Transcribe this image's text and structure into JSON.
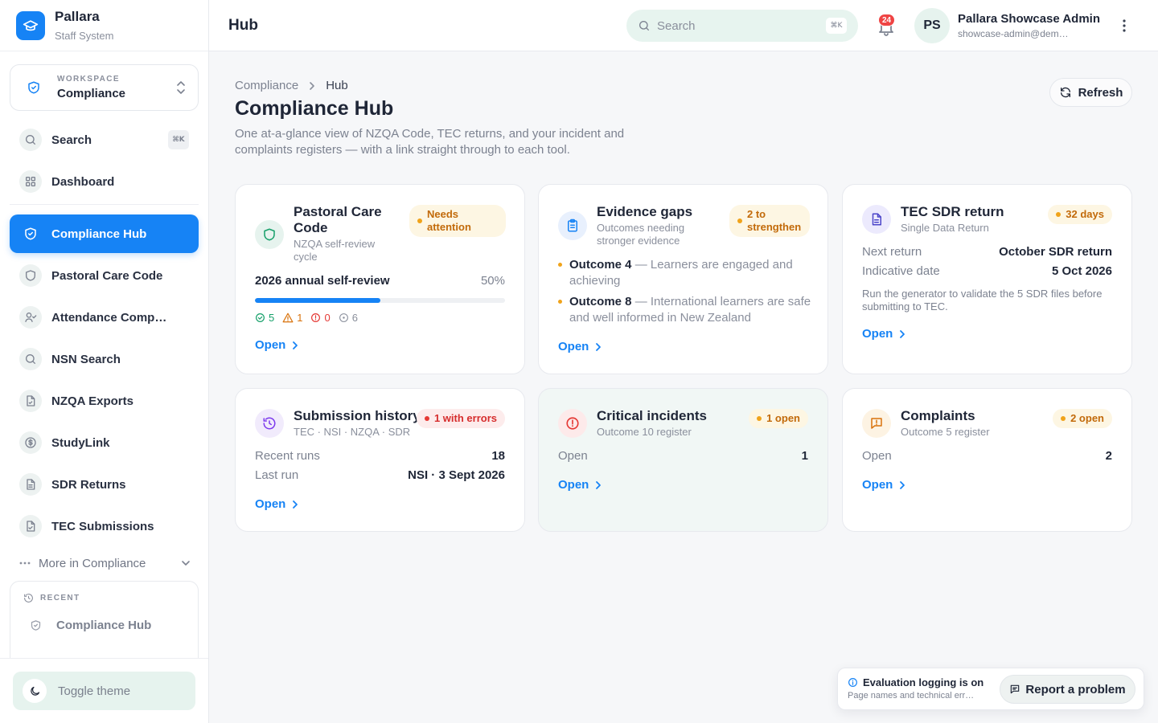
{
  "brand": {
    "name": "Pallara",
    "subtitle": "Staff System"
  },
  "workspace": {
    "caption": "WORKSPACE",
    "value": "Compliance"
  },
  "nav": {
    "items": [
      {
        "label": "Search",
        "icon": "search-icon",
        "shortcut": "⌘K"
      },
      {
        "label": "Dashboard",
        "icon": "grid-icon"
      },
      {
        "label": "Compliance Hub",
        "icon": "shield-icon",
        "active": true
      },
      {
        "label": "Pastoral Care Code",
        "icon": "shield-icon"
      },
      {
        "label": "Attendance Comp…",
        "icon": "user-check-icon"
      },
      {
        "label": "NSN Search",
        "icon": "search-icon"
      },
      {
        "label": "NZQA Exports",
        "icon": "file-icon"
      },
      {
        "label": "StudyLink",
        "icon": "dollar-icon"
      },
      {
        "label": "SDR Returns",
        "icon": "file-text-icon"
      },
      {
        "label": "TEC Submissions",
        "icon": "file-check-icon"
      }
    ],
    "more": "More in Compliance"
  },
  "recent": {
    "caption": "RECENT",
    "items": [
      {
        "label": "Compliance Hub",
        "icon": "shield-icon"
      }
    ]
  },
  "toggle_theme": "Toggle theme",
  "topbar": {
    "title": "Hub",
    "search_placeholder": "Search",
    "search_shortcut": "⌘K",
    "notification_count": "24",
    "user_initials": "PS",
    "user_name": "Pallara Showcase Admin",
    "user_email": "showcase-admin@dem…"
  },
  "breadcrumb": {
    "parent": "Compliance",
    "current": "Hub"
  },
  "page": {
    "title": "Compliance Hub",
    "description": "One at-a-glance view of NZQA Code, TEC returns, and your incident and complaints registers — with a link straight through to each tool.",
    "refresh": "Refresh"
  },
  "cards": {
    "pastoral": {
      "title": "Pastoral Care Code",
      "subtitle": "NZQA self-review cycle",
      "badge": "Needs attention",
      "review_label": "2026 annual self-review",
      "progress_label": "50%",
      "progress": 0.5,
      "stats": {
        "done": "5",
        "warnings": "1",
        "errors": "0",
        "pending": "6"
      },
      "open": "Open"
    },
    "evidence": {
      "title": "Evidence gaps",
      "subtitle": "Outcomes needing stronger evidence",
      "badge": "2 to strengthen",
      "outcomes": [
        {
          "name": "Outcome 4",
          "desc": " — Learners are engaged and achieving"
        },
        {
          "name": "Outcome 8",
          "desc": " — International learners are safe and well informed in New Zealand"
        }
      ],
      "open": "Open"
    },
    "sdr": {
      "title": "TEC SDR return",
      "subtitle": "Single Data Return",
      "badge": "32 days",
      "next_label": "Next return",
      "next_value": "October SDR return",
      "date_label": "Indicative date",
      "date_value": "5 Oct 2026",
      "note": "Run the generator to validate the 5 SDR files before submitting to TEC.",
      "open": "Open"
    },
    "history": {
      "title": "Submission history",
      "subtitle": "TEC · NSI · NZQA · SDR",
      "badge": "1 with errors",
      "runs_label": "Recent runs",
      "runs_value": "18",
      "last_label": "Last run",
      "last_value": "NSI · 3 Sept 2026",
      "open": "Open"
    },
    "incidents": {
      "title": "Critical incidents",
      "subtitle": "Outcome 10 register",
      "badge": "1 open",
      "open_label": "Open",
      "open_value": "1",
      "open": "Open"
    },
    "complaints": {
      "title": "Complaints",
      "subtitle": "Outcome 5 register",
      "badge": "2 open",
      "open_label": "Open",
      "open_value": "2",
      "open": "Open"
    }
  },
  "toast": {
    "title": "Evaluation logging is on",
    "subtitle": "Page names and technical err…",
    "button": "Report a problem"
  },
  "colors": {
    "accent": "#1683f5",
    "warn": "#f0a31a",
    "error": "#e53935",
    "mint": "#e6f3ee"
  }
}
